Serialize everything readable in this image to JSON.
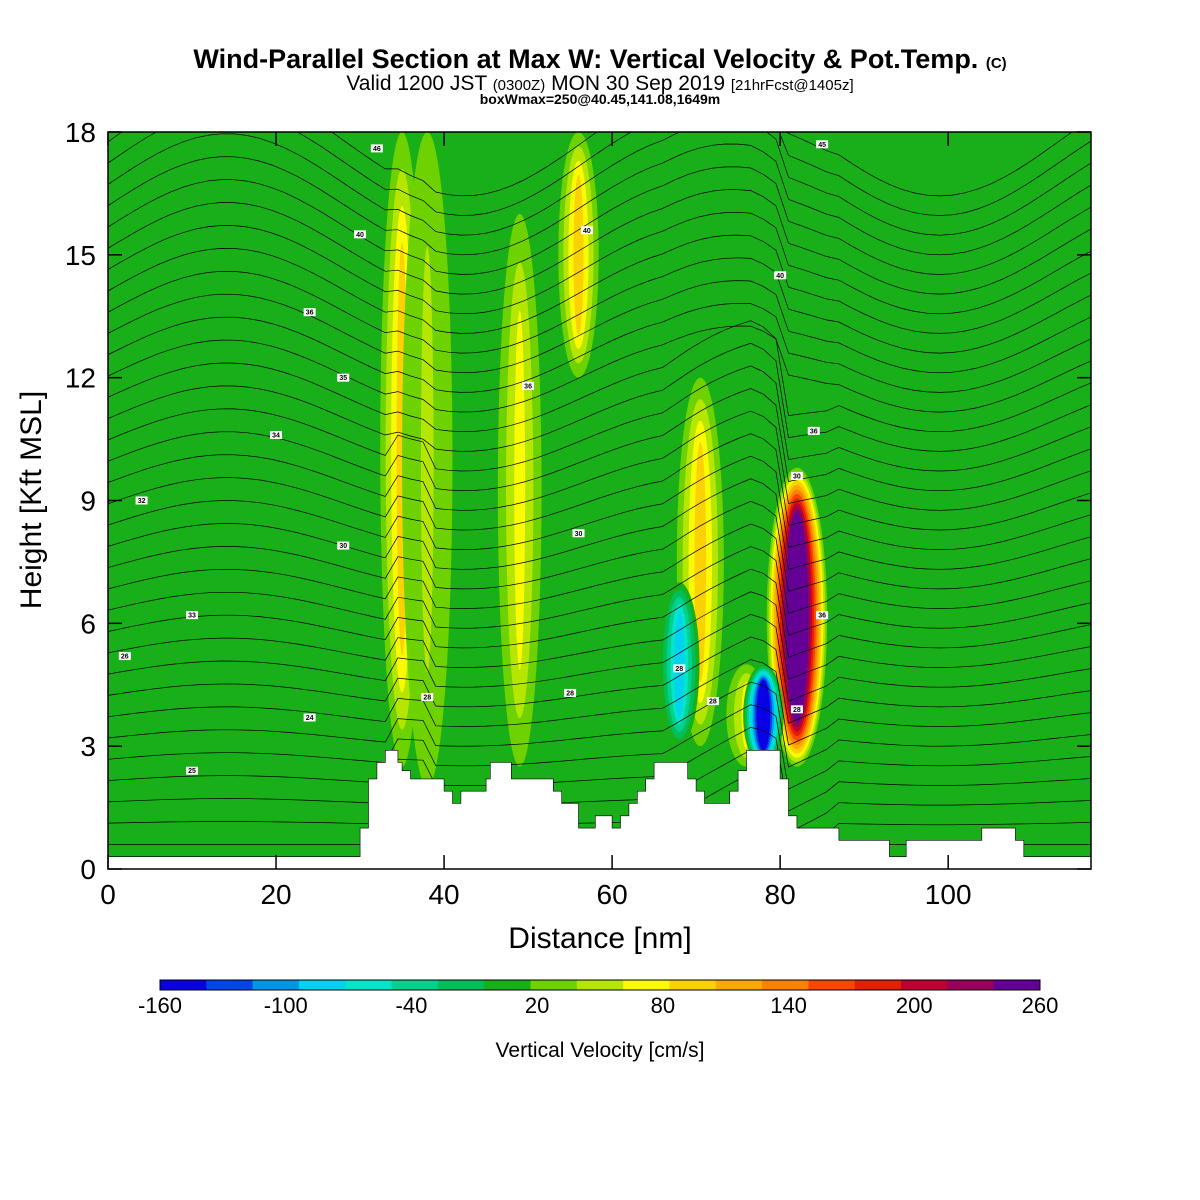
{
  "header": {
    "title": "Wind-Parallel Section at Max W: Vertical Velocity & Pot.Temp.",
    "copyright": "(C)",
    "valid_prefix": "Valid 1200 JST",
    "valid_zulu": "(0300Z)",
    "valid_date": "MON 30 Sep 2019",
    "forecast": "[21hrFcst@1405z]",
    "box_info": "boxWmax=250@40.45,141.08,1649m"
  },
  "chart_data": {
    "type": "heatmap",
    "title": "Wind-Parallel Section at Max W: Vertical Velocity & Pot.Temp.",
    "xlabel": "Distance [nm]",
    "ylabel": "Height [Kft MSL]",
    "xlim": [
      0,
      117
    ],
    "ylim": [
      0,
      18
    ],
    "x_ticks": [
      0,
      20,
      40,
      60,
      80,
      100
    ],
    "y_ticks": [
      0,
      3,
      6,
      9,
      12,
      15,
      18
    ],
    "grid": false,
    "colorbar": {
      "label": "Vertical Velocity [cm/s]",
      "min": -160,
      "max": 260,
      "step": 20,
      "tick_values": [
        -160,
        -100,
        -40,
        20,
        80,
        140,
        200,
        260
      ],
      "colors": [
        "#0a00e6",
        "#0046e6",
        "#0096e6",
        "#00d2f0",
        "#00e6c8",
        "#00d28c",
        "#00be5a",
        "#19af19",
        "#6ed200",
        "#b4e600",
        "#fafa00",
        "#fad200",
        "#faaa00",
        "#fa8200",
        "#fa4600",
        "#e61e00",
        "#be0032",
        "#96005a",
        "#640096"
      ]
    },
    "vertical_velocity_features": [
      {
        "x": 35.0,
        "half_width": 1.3,
        "w": 60,
        "height_range": [
          2.5,
          18
        ]
      },
      {
        "x": 38.0,
        "half_width": 1.5,
        "w": 30,
        "height_range": [
          2,
          18
        ]
      },
      {
        "x": 49.0,
        "half_width": 1.3,
        "w": 50,
        "height_range": [
          2.5,
          16
        ]
      },
      {
        "x": 56.0,
        "half_width": 1.2,
        "w": 60,
        "height_range": [
          12,
          18
        ]
      },
      {
        "x": 70.5,
        "half_width": 1.4,
        "w": 60,
        "height_range": [
          3,
          12
        ]
      },
      {
        "x": 76.0,
        "half_width": 1.2,
        "w": 50,
        "height_range": [
          2.5,
          5
        ]
      },
      {
        "x": 82.0,
        "half_width": 1.8,
        "w": 250,
        "height_range": [
          2.5,
          9.8
        ]
      },
      {
        "x": 78.0,
        "half_width": 1.2,
        "w": -160,
        "height_range": [
          2.5,
          5
        ]
      },
      {
        "x": 68.0,
        "half_width": 1.2,
        "w": -90,
        "height_range": [
          3,
          7
        ]
      }
    ],
    "potential_temperature_isentropes": [
      {
        "value": "24",
        "x": 24,
        "y": 3.7
      },
      {
        "value": "25",
        "x": 10,
        "y": 2.4
      },
      {
        "value": "26",
        "x": 2,
        "y": 5.2
      },
      {
        "value": "28",
        "x": 38,
        "y": 4.2
      },
      {
        "value": "28",
        "x": 55,
        "y": 4.3
      },
      {
        "value": "28",
        "x": 68,
        "y": 4.9
      },
      {
        "value": "28",
        "x": 82,
        "y": 3.9
      },
      {
        "value": "28",
        "x": 72,
        "y": 4.1
      },
      {
        "value": "30",
        "x": 28,
        "y": 7.9
      },
      {
        "value": "30",
        "x": 56,
        "y": 8.2
      },
      {
        "value": "30",
        "x": 82,
        "y": 9.6
      },
      {
        "value": "32",
        "x": 4,
        "y": 9.0
      },
      {
        "value": "33",
        "x": 10,
        "y": 6.2
      },
      {
        "value": "34",
        "x": 20,
        "y": 10.6
      },
      {
        "value": "35",
        "x": 28,
        "y": 12.0
      },
      {
        "value": "36",
        "x": 24,
        "y": 13.6
      },
      {
        "value": "36",
        "x": 50,
        "y": 11.8
      },
      {
        "value": "36",
        "x": 84,
        "y": 10.7
      },
      {
        "value": "36",
        "x": 85,
        "y": 6.2
      },
      {
        "value": "40",
        "x": 30,
        "y": 15.5
      },
      {
        "value": "40",
        "x": 57,
        "y": 15.6
      },
      {
        "value": "40",
        "x": 80,
        "y": 14.5
      },
      {
        "value": "46",
        "x": 32,
        "y": 17.6
      },
      {
        "value": "45",
        "x": 85,
        "y": 17.7
      }
    ],
    "terrain": [
      [
        0,
        0.3
      ],
      [
        30,
        0.3
      ],
      [
        30,
        1.0
      ],
      [
        31,
        1.0
      ],
      [
        31,
        2.2
      ],
      [
        32,
        2.2
      ],
      [
        32,
        2.6
      ],
      [
        33,
        2.6
      ],
      [
        33,
        2.9
      ],
      [
        34.5,
        2.9
      ],
      [
        34.5,
        2.6
      ],
      [
        35,
        2.6
      ],
      [
        35,
        2.4
      ],
      [
        36,
        2.4
      ],
      [
        36,
        2.2
      ],
      [
        40,
        2.2
      ],
      [
        40,
        1.9
      ],
      [
        41,
        1.9
      ],
      [
        41,
        1.6
      ],
      [
        42,
        1.6
      ],
      [
        42,
        1.9
      ],
      [
        45,
        1.9
      ],
      [
        45,
        2.2
      ],
      [
        45.5,
        2.2
      ],
      [
        45.5,
        2.6
      ],
      [
        48,
        2.6
      ],
      [
        48,
        2.2
      ],
      [
        53,
        2.2
      ],
      [
        53,
        1.9
      ],
      [
        54,
        1.9
      ],
      [
        54,
        1.6
      ],
      [
        56,
        1.6
      ],
      [
        56,
        1.0
      ],
      [
        58,
        1.0
      ],
      [
        58,
        1.3
      ],
      [
        60,
        1.3
      ],
      [
        60,
        1.0
      ],
      [
        61,
        1.0
      ],
      [
        61,
        1.3
      ],
      [
        62,
        1.3
      ],
      [
        62,
        1.6
      ],
      [
        63,
        1.6
      ],
      [
        63,
        1.9
      ],
      [
        64,
        1.9
      ],
      [
        64,
        2.2
      ],
      [
        65,
        2.2
      ],
      [
        65,
        2.6
      ],
      [
        69,
        2.6
      ],
      [
        69,
        2.2
      ],
      [
        70,
        2.2
      ],
      [
        70,
        1.9
      ],
      [
        71,
        1.9
      ],
      [
        71,
        1.6
      ],
      [
        74,
        1.6
      ],
      [
        74,
        1.9
      ],
      [
        75,
        1.9
      ],
      [
        75,
        2.4
      ],
      [
        76,
        2.4
      ],
      [
        76,
        2.9
      ],
      [
        80,
        2.9
      ],
      [
        80,
        2.2
      ],
      [
        81,
        2.2
      ],
      [
        81,
        1.3
      ],
      [
        82,
        1.3
      ],
      [
        82,
        1.0
      ],
      [
        87,
        1.0
      ],
      [
        87,
        0.7
      ],
      [
        93,
        0.7
      ],
      [
        93,
        0.3
      ],
      [
        95,
        0.3
      ],
      [
        95,
        0.7
      ],
      [
        104,
        0.7
      ],
      [
        104,
        1.0
      ],
      [
        108,
        1.0
      ],
      [
        108,
        0.7
      ],
      [
        109,
        0.7
      ],
      [
        109,
        0.3
      ],
      [
        117,
        0.3
      ],
      [
        117,
        0
      ]
    ]
  }
}
